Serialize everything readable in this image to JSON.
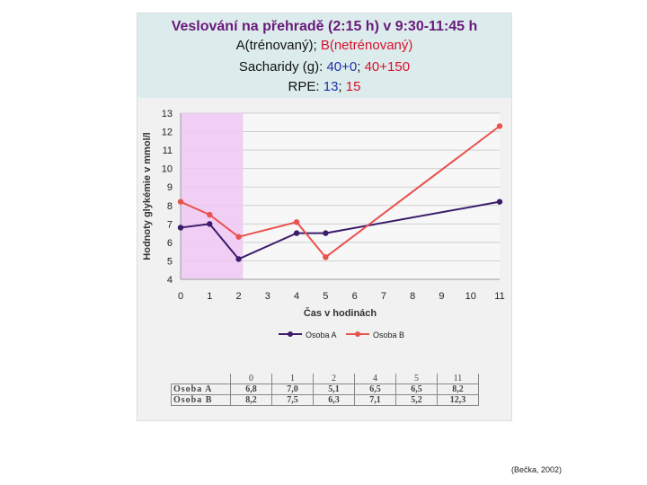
{
  "header": {
    "title": "Veslování na přehradě (2:15 h) v 9:30-11:45 h",
    "groups_a": "A(trénovaný)",
    "groups_sep": "; ",
    "groups_b": "B(netrénovaný)",
    "carbs_label": "Sacharidy (g): ",
    "carbs_a": "40+0",
    "carbs_sep": "; ",
    "carbs_b": "40+150",
    "rpe_label": "RPE: ",
    "rpe_a": "13",
    "rpe_sep": "; ",
    "rpe_b": "15"
  },
  "chart_data": {
    "type": "line",
    "xlabel": "Čas v hodinách",
    "ylabel": "Hodnoty glykémie v mmol/l",
    "x_ticks": [
      "0",
      "1",
      "2",
      "3",
      "4",
      "5",
      "6",
      "7",
      "8",
      "9",
      "10",
      "11"
    ],
    "y_ticks": [
      "4",
      "5",
      "6",
      "7",
      "8",
      "9",
      "10",
      "11",
      "12",
      "13"
    ],
    "xlim": [
      0,
      11
    ],
    "ylim": [
      4,
      13
    ],
    "grid": true,
    "legend_position": "bottom",
    "highlight_band_x": [
      0,
      2.15
    ],
    "series": [
      {
        "name": "Osoba A",
        "color": "#3b1d6b",
        "x": [
          0,
          1,
          2,
          4,
          5,
          11
        ],
        "y": [
          6.8,
          7.0,
          5.1,
          6.5,
          6.5,
          8.2
        ]
      },
      {
        "name": "Osoba B",
        "color": "#e8524f",
        "x": [
          0,
          1,
          2,
          4,
          5,
          11
        ],
        "y": [
          8.2,
          7.5,
          6.3,
          7.1,
          5.2,
          12.3
        ]
      }
    ]
  },
  "table": {
    "headers": [
      "0",
      "1",
      "2",
      "4",
      "5",
      "11"
    ],
    "rows": [
      {
        "label": "Osoba A",
        "values": [
          "6,8",
          "7,0",
          "5,1",
          "6,5",
          "6,5",
          "8,2"
        ]
      },
      {
        "label": "Osoba B",
        "values": [
          "8,2",
          "7,5",
          "6,3",
          "7,1",
          "5,2",
          "12,3"
        ]
      }
    ]
  },
  "colors": {
    "header_bg": "#dcecec",
    "title": "#6a1a7a",
    "highlight_band": "#f0c8f5"
  },
  "citation": "(Bečka, 2002)"
}
